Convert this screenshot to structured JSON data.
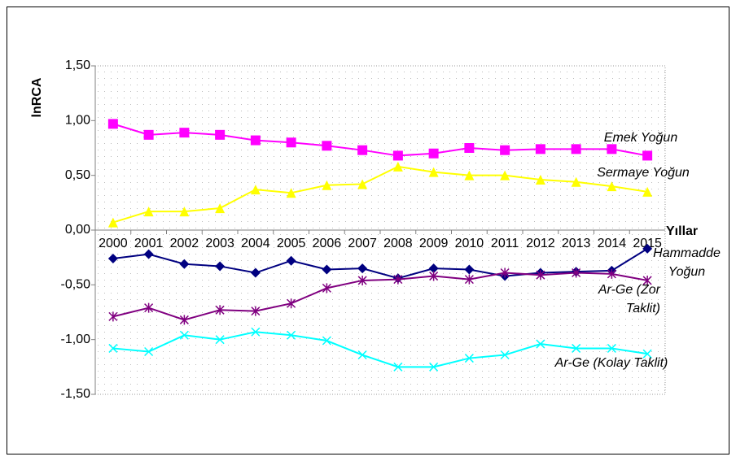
{
  "chart_data": {
    "type": "line",
    "y_label": "lnRCA",
    "x_label": "Yıllar",
    "categories": [
      "2000",
      "2001",
      "2002",
      "2003",
      "2004",
      "2005",
      "2006",
      "2007",
      "2008",
      "2009",
      "2010",
      "2011",
      "2012",
      "2013",
      "2014",
      "2015"
    ],
    "series": [
      {
        "name": "Emek Yoğun",
        "color": "#ff00ff",
        "marker": "square",
        "values": [
          0.97,
          0.87,
          0.89,
          0.87,
          0.82,
          0.8,
          0.77,
          0.73,
          0.68,
          0.7,
          0.75,
          0.73,
          0.74,
          0.74,
          0.74,
          0.68
        ]
      },
      {
        "name": "Sermaye Yoğun",
        "color": "#ffff00",
        "marker": "triangle",
        "values": [
          0.07,
          0.17,
          0.17,
          0.2,
          0.37,
          0.34,
          0.41,
          0.42,
          0.58,
          0.53,
          0.5,
          0.5,
          0.46,
          0.44,
          0.4,
          0.35
        ]
      },
      {
        "name": "Hammadde Yoğun",
        "color": "#000080",
        "marker": "diamond",
        "values": [
          -0.26,
          -0.22,
          -0.31,
          -0.33,
          -0.39,
          -0.28,
          -0.36,
          -0.35,
          -0.44,
          -0.35,
          -0.36,
          -0.42,
          -0.39,
          -0.38,
          -0.37,
          -0.17
        ]
      },
      {
        "name": "Ar-Ge (Zor Taklit)",
        "color": "#800080",
        "marker": "star",
        "values": [
          -0.79,
          -0.71,
          -0.82,
          -0.73,
          -0.74,
          -0.67,
          -0.53,
          -0.46,
          -0.45,
          -0.42,
          -0.45,
          -0.39,
          -0.41,
          -0.39,
          -0.4,
          -0.46
        ]
      },
      {
        "name": "Ar-Ge (Kolay Taklit)",
        "color": "#00ffff",
        "marker": "x",
        "values": [
          -1.08,
          -1.11,
          -0.96,
          -1.0,
          -0.93,
          -0.96,
          -1.01,
          -1.14,
          -1.25,
          -1.25,
          -1.17,
          -1.14,
          -1.04,
          -1.08,
          -1.08,
          -1.13
        ]
      }
    ],
    "ylim": [
      -1.5,
      1.5
    ],
    "yticks": [
      {
        "value": -1.5,
        "label": "-1,50"
      },
      {
        "value": -1.0,
        "label": "-1,00"
      },
      {
        "value": -0.5,
        "label": "-0,50"
      },
      {
        "value": 0,
        "label": "0,00"
      },
      {
        "value": 0.5,
        "label": "0,50"
      },
      {
        "value": 1.0,
        "label": "1,00"
      },
      {
        "value": 1.5,
        "label": "1,50"
      }
    ]
  }
}
